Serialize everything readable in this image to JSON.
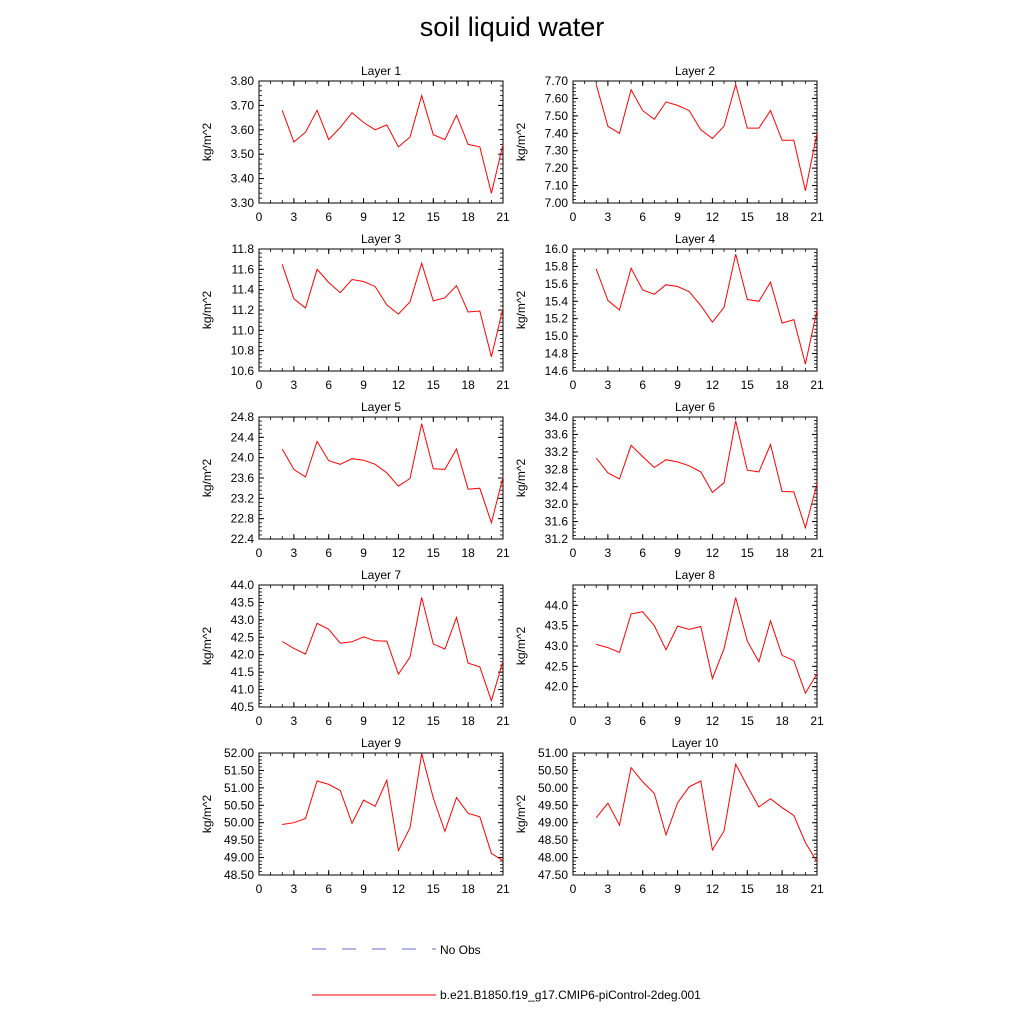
{
  "title": "soil liquid water",
  "legend": {
    "obs_label": "No Obs",
    "model_label": "b.e21.B1850.f19_g17.CMIP6-piControl-2deg.001"
  },
  "colors": {
    "model": "#ff0000",
    "obs": "#6a6ad8",
    "axis": "#000000"
  },
  "chart_data": [
    {
      "type": "line",
      "title": "Layer 1",
      "ylabel": "kg/m^2",
      "xlim": [
        0,
        21
      ],
      "xticks": [
        0,
        3,
        6,
        9,
        12,
        15,
        18,
        21
      ],
      "ylim": [
        3.3,
        3.8
      ],
      "yticks": [
        "3.30",
        "3.40",
        "3.50",
        "3.60",
        "3.70",
        "3.80"
      ],
      "x": [
        2,
        3,
        4,
        5,
        6,
        7,
        8,
        9,
        10,
        11,
        12,
        13,
        14,
        15,
        16,
        17,
        18,
        19,
        20,
        21
      ],
      "series": [
        {
          "values": [
            3.68,
            3.55,
            3.59,
            3.68,
            3.56,
            3.61,
            3.67,
            3.63,
            3.6,
            3.62,
            3.53,
            3.57,
            3.74,
            3.58,
            3.56,
            3.66,
            3.54,
            3.53,
            3.34,
            3.54
          ]
        }
      ]
    },
    {
      "type": "line",
      "title": "Layer 2",
      "ylabel": "kg/m^2",
      "xlim": [
        0,
        21
      ],
      "xticks": [
        0,
        3,
        6,
        9,
        12,
        15,
        18,
        21
      ],
      "ylim": [
        7.0,
        7.7
      ],
      "yticks": [
        "7.00",
        "7.10",
        "7.20",
        "7.30",
        "7.40",
        "7.50",
        "7.60",
        "7.70"
      ],
      "x": [
        2,
        3,
        4,
        5,
        6,
        7,
        8,
        9,
        10,
        11,
        12,
        13,
        14,
        15,
        16,
        17,
        18,
        19,
        20,
        21
      ],
      "series": [
        {
          "values": [
            7.68,
            7.44,
            7.4,
            7.65,
            7.53,
            7.48,
            7.58,
            7.56,
            7.53,
            7.42,
            7.37,
            7.44,
            7.68,
            7.43,
            7.43,
            7.53,
            7.36,
            7.36,
            7.07,
            7.4
          ]
        }
      ]
    },
    {
      "type": "line",
      "title": "Layer 3",
      "ylabel": "kg/m^2",
      "xlim": [
        0,
        21
      ],
      "xticks": [
        0,
        3,
        6,
        9,
        12,
        15,
        18,
        21
      ],
      "ylim": [
        10.6,
        11.8
      ],
      "yticks": [
        "10.6",
        "10.8",
        "11.0",
        "11.2",
        "11.4",
        "11.6",
        "11.8"
      ],
      "x": [
        2,
        3,
        4,
        5,
        6,
        7,
        8,
        9,
        10,
        11,
        12,
        13,
        14,
        15,
        16,
        17,
        18,
        19,
        20,
        21
      ],
      "series": [
        {
          "values": [
            11.65,
            11.31,
            11.22,
            11.6,
            11.47,
            11.37,
            11.5,
            11.48,
            11.43,
            11.25,
            11.16,
            11.28,
            11.66,
            11.29,
            11.32,
            11.44,
            11.18,
            11.19,
            10.74,
            11.22
          ]
        }
      ]
    },
    {
      "type": "line",
      "title": "Layer 4",
      "ylabel": "kg/m^2",
      "xlim": [
        0,
        21
      ],
      "xticks": [
        0,
        3,
        6,
        9,
        12,
        15,
        18,
        21
      ],
      "ylim": [
        14.6,
        16.0
      ],
      "yticks": [
        "14.6",
        "14.8",
        "15.0",
        "15.2",
        "15.4",
        "15.6",
        "15.8",
        "16.0"
      ],
      "x": [
        2,
        3,
        4,
        5,
        6,
        7,
        8,
        9,
        10,
        11,
        12,
        13,
        14,
        15,
        16,
        17,
        18,
        19,
        20,
        21
      ],
      "series": [
        {
          "values": [
            15.77,
            15.41,
            15.3,
            15.78,
            15.53,
            15.48,
            15.59,
            15.57,
            15.51,
            15.35,
            15.16,
            15.33,
            15.94,
            15.42,
            15.4,
            15.62,
            15.15,
            15.19,
            14.68,
            15.3
          ]
        }
      ]
    },
    {
      "type": "line",
      "title": "Layer 5",
      "ylabel": "kg/m^2",
      "xlim": [
        0,
        21
      ],
      "xticks": [
        0,
        3,
        6,
        9,
        12,
        15,
        18,
        21
      ],
      "ylim": [
        22.4,
        24.8
      ],
      "yticks": [
        "22.4",
        "22.8",
        "23.2",
        "23.6",
        "24.0",
        "24.4",
        "24.8"
      ],
      "x": [
        2,
        3,
        4,
        5,
        6,
        7,
        8,
        9,
        10,
        11,
        12,
        13,
        14,
        15,
        16,
        17,
        18,
        19,
        20,
        21
      ],
      "series": [
        {
          "values": [
            24.17,
            23.77,
            23.62,
            24.32,
            23.94,
            23.87,
            23.98,
            23.95,
            23.87,
            23.7,
            23.44,
            23.59,
            24.67,
            23.78,
            23.77,
            24.17,
            23.38,
            23.4,
            22.72,
            23.62
          ]
        }
      ]
    },
    {
      "type": "line",
      "title": "Layer 6",
      "ylabel": "kg/m^2",
      "xlim": [
        0,
        21
      ],
      "xticks": [
        0,
        3,
        6,
        9,
        12,
        15,
        18,
        21
      ],
      "ylim": [
        31.2,
        34.0
      ],
      "yticks": [
        "31.2",
        "31.6",
        "32.0",
        "32.4",
        "32.8",
        "33.2",
        "33.6",
        "34.0"
      ],
      "x": [
        2,
        3,
        4,
        5,
        6,
        7,
        8,
        9,
        10,
        11,
        12,
        13,
        14,
        15,
        16,
        17,
        18,
        19,
        20,
        21
      ],
      "series": [
        {
          "values": [
            33.06,
            32.72,
            32.58,
            33.35,
            33.09,
            32.84,
            33.02,
            32.97,
            32.88,
            32.74,
            32.27,
            32.49,
            33.91,
            32.78,
            32.74,
            33.37,
            32.29,
            32.28,
            31.46,
            32.47
          ]
        }
      ]
    },
    {
      "type": "line",
      "title": "Layer 7",
      "ylabel": "kg/m^2",
      "xlim": [
        0,
        21
      ],
      "xticks": [
        0,
        3,
        6,
        9,
        12,
        15,
        18,
        21
      ],
      "ylim": [
        40.5,
        44.0
      ],
      "yticks": [
        "40.5",
        "41.0",
        "41.5",
        "42.0",
        "42.5",
        "43.0",
        "43.5",
        "44.0"
      ],
      "x": [
        2,
        3,
        4,
        5,
        6,
        7,
        8,
        9,
        10,
        11,
        12,
        13,
        14,
        15,
        16,
        17,
        18,
        19,
        20,
        21
      ],
      "series": [
        {
          "values": [
            42.38,
            42.18,
            42.02,
            42.9,
            42.73,
            42.33,
            42.37,
            42.51,
            42.4,
            42.39,
            41.44,
            41.93,
            43.64,
            42.31,
            42.16,
            43.07,
            41.76,
            41.65,
            40.68,
            41.82
          ]
        }
      ]
    },
    {
      "type": "line",
      "title": "Layer 8",
      "ylabel": "kg/m^2",
      "xlim": [
        0,
        21
      ],
      "xticks": [
        0,
        3,
        6,
        9,
        12,
        15,
        18,
        21
      ],
      "ylim": [
        41.5,
        44.5
      ],
      "yticks": [
        "42.0",
        "42.5",
        "43.0",
        "43.5",
        "44.0"
      ],
      "x": [
        2,
        3,
        4,
        5,
        6,
        7,
        8,
        9,
        10,
        11,
        12,
        13,
        14,
        15,
        16,
        17,
        18,
        19,
        20,
        21
      ],
      "series": [
        {
          "values": [
            43.04,
            42.96,
            42.84,
            43.79,
            43.84,
            43.5,
            42.91,
            43.49,
            43.41,
            43.48,
            42.2,
            42.93,
            44.19,
            43.12,
            42.61,
            43.62,
            42.77,
            42.64,
            41.84,
            42.32
          ]
        }
      ]
    },
    {
      "type": "line",
      "title": "Layer 9",
      "ylabel": "kg/m^2",
      "xlim": [
        0,
        21
      ],
      "xticks": [
        0,
        3,
        6,
        9,
        12,
        15,
        18,
        21
      ],
      "ylim": [
        48.5,
        52.0
      ],
      "yticks": [
        "48.50",
        "49.00",
        "49.50",
        "50.00",
        "50.50",
        "51.00",
        "51.50",
        "52.00"
      ],
      "x": [
        2,
        3,
        4,
        5,
        6,
        7,
        8,
        9,
        10,
        11,
        12,
        13,
        14,
        15,
        16,
        17,
        18,
        19,
        20,
        21
      ],
      "series": [
        {
          "values": [
            49.95,
            50.0,
            50.12,
            51.2,
            51.1,
            50.92,
            49.98,
            50.65,
            50.47,
            51.22,
            49.2,
            49.85,
            51.98,
            50.71,
            49.75,
            50.72,
            50.27,
            50.17,
            49.12,
            48.91
          ]
        }
      ]
    },
    {
      "type": "line",
      "title": "Layer 10",
      "ylabel": "kg/m^2",
      "xlim": [
        0,
        21
      ],
      "xticks": [
        0,
        3,
        6,
        9,
        12,
        15,
        18,
        21
      ],
      "ylim": [
        47.5,
        51.0
      ],
      "yticks": [
        "47.50",
        "48.00",
        "48.50",
        "49.00",
        "49.50",
        "50.00",
        "50.50",
        "51.00"
      ],
      "x": [
        2,
        3,
        4,
        5,
        6,
        7,
        8,
        9,
        10,
        11,
        12,
        13,
        14,
        15,
        16,
        17,
        18,
        19,
        20,
        21
      ],
      "series": [
        {
          "values": [
            49.14,
            49.56,
            48.93,
            50.58,
            50.17,
            49.84,
            48.65,
            49.57,
            50.03,
            50.2,
            48.22,
            48.76,
            50.68,
            50.05,
            49.45,
            49.69,
            49.43,
            49.21,
            48.43,
            47.88
          ]
        }
      ]
    }
  ]
}
